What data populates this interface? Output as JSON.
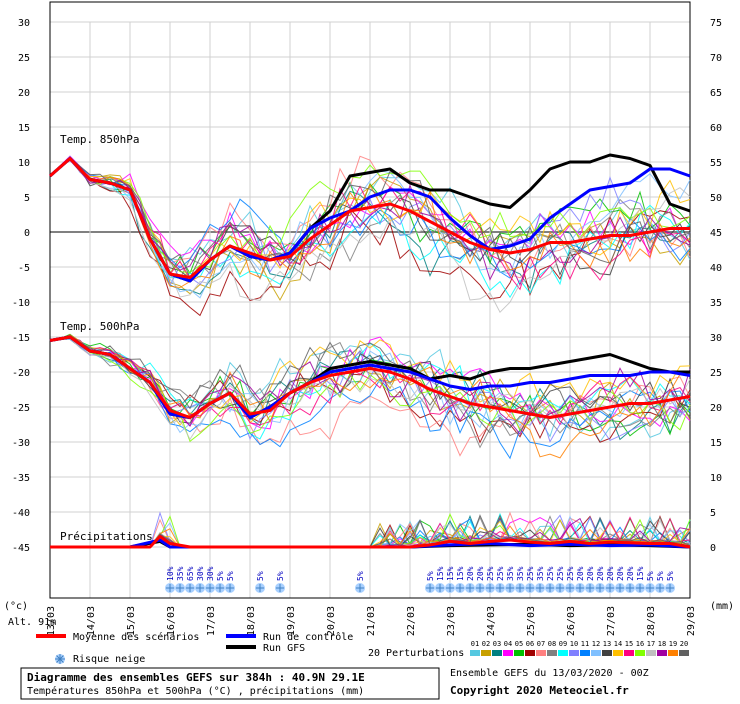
{
  "chart_data": {
    "type": "line",
    "x_dates": [
      "13/03",
      "14/03",
      "15/03",
      "16/03",
      "17/03",
      "18/03",
      "19/03",
      "20/03",
      "21/03",
      "22/03",
      "23/03",
      "24/03",
      "25/03",
      "26/03",
      "27/03",
      "28/03",
      "29/03"
    ],
    "left_ticks": [
      "30",
      "25",
      "20",
      "15",
      "10",
      "5",
      "0",
      "-5",
      "-10",
      "-15",
      "-20",
      "-25",
      "-30",
      "-35",
      "-40",
      "-45"
    ],
    "right_ticks": [
      "75",
      "70",
      "65",
      "60",
      "55",
      "50",
      "45",
      "40",
      "35",
      "30",
      "25",
      "20",
      "15",
      "10",
      "5",
      "0"
    ],
    "left_unit": "(°c)",
    "right_unit": "(mm)",
    "altitude_label": "Alt. 91m",
    "panel_labels": {
      "t850": "Temp. 850hPa",
      "t500": "Temp. 500hPa",
      "precip": "Précipitations"
    },
    "snow_risk": [
      {
        "date_pos": 3.0,
        "pct": "10%"
      },
      {
        "date_pos": 3.25,
        "pct": "35%"
      },
      {
        "date_pos": 3.5,
        "pct": "65%"
      },
      {
        "date_pos": 3.75,
        "pct": "30%"
      },
      {
        "date_pos": 4.0,
        "pct": "30%"
      },
      {
        "date_pos": 4.25,
        "pct": "5%"
      },
      {
        "date_pos": 4.5,
        "pct": "5%"
      },
      {
        "date_pos": 5.25,
        "pct": "5%"
      },
      {
        "date_pos": 5.75,
        "pct": "5%"
      },
      {
        "date_pos": 7.75,
        "pct": "5%"
      },
      {
        "date_pos": 9.5,
        "pct": "5%"
      },
      {
        "date_pos": 9.75,
        "pct": "15%"
      },
      {
        "date_pos": 10.0,
        "pct": "15%"
      },
      {
        "date_pos": 10.25,
        "pct": "15%"
      },
      {
        "date_pos": 10.5,
        "pct": "20%"
      },
      {
        "date_pos": 10.75,
        "pct": "20%"
      },
      {
        "date_pos": 11.0,
        "pct": "25%"
      },
      {
        "date_pos": 11.25,
        "pct": "25%"
      },
      {
        "date_pos": 11.5,
        "pct": "35%"
      },
      {
        "date_pos": 11.75,
        "pct": "35%"
      },
      {
        "date_pos": 12.0,
        "pct": "25%"
      },
      {
        "date_pos": 12.25,
        "pct": "35%"
      },
      {
        "date_pos": 12.5,
        "pct": "25%"
      },
      {
        "date_pos": 12.75,
        "pct": "25%"
      },
      {
        "date_pos": 13.0,
        "pct": "25%"
      },
      {
        "date_pos": 13.25,
        "pct": "20%"
      },
      {
        "date_pos": 13.5,
        "pct": "20%"
      },
      {
        "date_pos": 13.75,
        "pct": "20%"
      },
      {
        "date_pos": 14.0,
        "pct": "20%"
      },
      {
        "date_pos": 14.25,
        "pct": "20%"
      },
      {
        "date_pos": 14.5,
        "pct": "20%"
      },
      {
        "date_pos": 14.75,
        "pct": "15%"
      },
      {
        "date_pos": 15.0,
        "pct": "5%"
      },
      {
        "date_pos": 15.25,
        "pct": "5%"
      },
      {
        "date_pos": 15.5,
        "pct": "5%"
      }
    ],
    "series": [
      {
        "name": "Moyenne des scénarios",
        "color": "#ff0000",
        "t850": [
          [
            0,
            8
          ],
          [
            0.5,
            10.5
          ],
          [
            1,
            7.5
          ],
          [
            1.5,
            7
          ],
          [
            2,
            6
          ],
          [
            2.5,
            -1
          ],
          [
            3,
            -6
          ],
          [
            3.5,
            -6.5
          ],
          [
            4,
            -4
          ],
          [
            4.5,
            -2
          ],
          [
            5,
            -3
          ],
          [
            5.5,
            -4
          ],
          [
            6,
            -3.5
          ],
          [
            6.5,
            -1
          ],
          [
            7,
            1
          ],
          [
            7.5,
            3
          ],
          [
            8,
            3.5
          ],
          [
            8.5,
            4
          ],
          [
            9,
            3
          ],
          [
            9.5,
            1.5
          ],
          [
            10,
            0
          ],
          [
            10.5,
            -1.5
          ],
          [
            11,
            -2.5
          ],
          [
            11.5,
            -3
          ],
          [
            12,
            -2.5
          ],
          [
            12.5,
            -1.5
          ],
          [
            13,
            -1.5
          ],
          [
            13.5,
            -1
          ],
          [
            14,
            -0.5
          ],
          [
            14.5,
            -0.5
          ],
          [
            15,
            0
          ],
          [
            15.5,
            0.5
          ],
          [
            16,
            0.5
          ]
        ],
        "t500": [
          [
            0,
            -15.5
          ],
          [
            0.5,
            -15
          ],
          [
            1,
            -17
          ],
          [
            1.5,
            -17.5
          ],
          [
            2,
            -19.5
          ],
          [
            2.5,
            -21.5
          ],
          [
            3,
            -25.5
          ],
          [
            3.5,
            -26.5
          ],
          [
            4,
            -24.5
          ],
          [
            4.5,
            -23
          ],
          [
            5,
            -26
          ],
          [
            5.5,
            -25.5
          ],
          [
            6,
            -23
          ],
          [
            6.5,
            -21.5
          ],
          [
            7,
            -20.5
          ],
          [
            7.5,
            -20
          ],
          [
            8,
            -19.5
          ],
          [
            8.5,
            -20
          ],
          [
            9,
            -21
          ],
          [
            9.5,
            -22.5
          ],
          [
            10,
            -23.5
          ],
          [
            10.5,
            -24.5
          ],
          [
            11,
            -25
          ],
          [
            11.5,
            -25.5
          ],
          [
            12,
            -26
          ],
          [
            12.5,
            -26.5
          ],
          [
            13,
            -26
          ],
          [
            13.5,
            -25.5
          ],
          [
            14,
            -25
          ],
          [
            14.5,
            -24.5
          ],
          [
            15,
            -24.5
          ],
          [
            15.5,
            -24
          ],
          [
            16,
            -23.5
          ]
        ],
        "precip": [
          [
            0,
            0
          ],
          [
            2,
            0
          ],
          [
            2.5,
            0
          ],
          [
            2.75,
            1.5
          ],
          [
            3,
            0.5
          ],
          [
            3.5,
            0
          ],
          [
            5,
            0
          ],
          [
            7,
            0
          ],
          [
            9,
            0
          ],
          [
            9.5,
            0.3
          ],
          [
            10,
            0.8
          ],
          [
            10.5,
            0.5
          ],
          [
            11,
            0.8
          ],
          [
            11.5,
            1
          ],
          [
            12,
            0.7
          ],
          [
            12.5,
            0.5
          ],
          [
            13,
            0.8
          ],
          [
            13.5,
            0.5
          ],
          [
            14,
            0.7
          ],
          [
            14.5,
            0.6
          ],
          [
            15,
            0.5
          ],
          [
            15.5,
            0.5
          ],
          [
            16,
            0
          ]
        ]
      },
      {
        "name": "Run de contrôle",
        "color": "#0000ff",
        "t850": [
          [
            0,
            8
          ],
          [
            0.5,
            10.5
          ],
          [
            1,
            7.5
          ],
          [
            1.5,
            7
          ],
          [
            2,
            6
          ],
          [
            2.5,
            -1
          ],
          [
            3,
            -6
          ],
          [
            3.5,
            -7
          ],
          [
            4,
            -4
          ],
          [
            4.5,
            -2
          ],
          [
            5,
            -3.5
          ],
          [
            5.5,
            -4
          ],
          [
            6,
            -3
          ],
          [
            6.5,
            0.5
          ],
          [
            7,
            2
          ],
          [
            7.5,
            3
          ],
          [
            8,
            5
          ],
          [
            8.5,
            6
          ],
          [
            9,
            6
          ],
          [
            9.5,
            5
          ],
          [
            10,
            2
          ],
          [
            10.5,
            -0.5
          ],
          [
            11,
            -2.5
          ],
          [
            11.5,
            -2
          ],
          [
            12,
            -1
          ],
          [
            12.5,
            2
          ],
          [
            13,
            4
          ],
          [
            13.5,
            6
          ],
          [
            14,
            6.5
          ],
          [
            14.5,
            7
          ],
          [
            15,
            9
          ],
          [
            15.5,
            9
          ],
          [
            16,
            8
          ]
        ],
        "t500": [
          [
            0,
            -15.5
          ],
          [
            0.5,
            -15
          ],
          [
            1,
            -17
          ],
          [
            1.5,
            -17.5
          ],
          [
            2,
            -19.5
          ],
          [
            2.5,
            -21.5
          ],
          [
            3,
            -26
          ],
          [
            3.5,
            -26.5
          ],
          [
            4,
            -24.5
          ],
          [
            4.5,
            -23
          ],
          [
            5,
            -26.5
          ],
          [
            5.5,
            -25
          ],
          [
            6,
            -23
          ],
          [
            6.5,
            -21.5
          ],
          [
            7,
            -20
          ],
          [
            7.5,
            -19.5
          ],
          [
            8,
            -19
          ],
          [
            8.5,
            -19.5
          ],
          [
            9,
            -20
          ],
          [
            9.5,
            -21
          ],
          [
            10,
            -22
          ],
          [
            10.5,
            -22.5
          ],
          [
            11,
            -22
          ],
          [
            11.5,
            -22
          ],
          [
            12,
            -21.5
          ],
          [
            12.5,
            -21.5
          ],
          [
            13,
            -21
          ],
          [
            13.5,
            -20.5
          ],
          [
            14,
            -20.5
          ],
          [
            14.5,
            -20.5
          ],
          [
            15,
            -20
          ],
          [
            15.5,
            -20
          ],
          [
            16,
            -20.5
          ]
        ],
        "precip": [
          [
            0,
            0
          ],
          [
            2,
            0
          ],
          [
            2.75,
            1
          ],
          [
            3,
            0
          ],
          [
            9,
            0
          ],
          [
            10,
            0.3
          ],
          [
            11,
            0.5
          ],
          [
            12,
            0.2
          ],
          [
            13,
            0.4
          ],
          [
            14,
            0.2
          ],
          [
            15,
            0.3
          ],
          [
            16,
            0
          ]
        ]
      },
      {
        "name": "Run GFS",
        "color": "#000000",
        "t850": [
          [
            0,
            8
          ],
          [
            0.5,
            10.5
          ],
          [
            1,
            7.5
          ],
          [
            1.5,
            7
          ],
          [
            2,
            6
          ],
          [
            2.5,
            -1
          ],
          [
            3,
            -6
          ],
          [
            3.5,
            -7
          ],
          [
            4,
            -4
          ],
          [
            4.5,
            -2
          ],
          [
            5,
            -3.5
          ],
          [
            5.5,
            -4
          ],
          [
            6,
            -3
          ],
          [
            6.5,
            0.5
          ],
          [
            7,
            3
          ],
          [
            7.5,
            8
          ],
          [
            8,
            8.5
          ],
          [
            8.5,
            9
          ],
          [
            9,
            7
          ],
          [
            9.5,
            6
          ],
          [
            10,
            6
          ],
          [
            10.5,
            5
          ],
          [
            11,
            4
          ],
          [
            11.5,
            3.5
          ],
          [
            12,
            6
          ],
          [
            12.5,
            9
          ],
          [
            13,
            10
          ],
          [
            13.5,
            10
          ],
          [
            14,
            11
          ],
          [
            14.5,
            10.5
          ],
          [
            15,
            9.5
          ],
          [
            15.5,
            4
          ],
          [
            16,
            3
          ]
        ],
        "t500": [
          [
            0,
            -15.5
          ],
          [
            0.5,
            -15
          ],
          [
            1,
            -17
          ],
          [
            1.5,
            -17.5
          ],
          [
            2,
            -19.5
          ],
          [
            2.5,
            -21.5
          ],
          [
            3,
            -26
          ],
          [
            3.5,
            -26.5
          ],
          [
            4,
            -24.5
          ],
          [
            4.5,
            -23
          ],
          [
            5,
            -26.5
          ],
          [
            5.5,
            -25
          ],
          [
            6,
            -23
          ],
          [
            6.5,
            -21.5
          ],
          [
            7,
            -19.5
          ],
          [
            7.5,
            -19
          ],
          [
            8,
            -18.5
          ],
          [
            8.5,
            -19
          ],
          [
            9,
            -19.5
          ],
          [
            9.5,
            -21
          ],
          [
            10,
            -20.5
          ],
          [
            10.5,
            -21
          ],
          [
            11,
            -20
          ],
          [
            11.5,
            -19.5
          ],
          [
            12,
            -19.5
          ],
          [
            12.5,
            -19
          ],
          [
            13,
            -18.5
          ],
          [
            13.5,
            -18
          ],
          [
            14,
            -17.5
          ],
          [
            14.5,
            -18.5
          ],
          [
            15,
            -19.5
          ],
          [
            15.5,
            -20
          ],
          [
            16,
            -20
          ]
        ],
        "precip": [
          [
            0,
            0
          ],
          [
            2,
            0
          ],
          [
            2.75,
            0.8
          ],
          [
            3,
            0
          ],
          [
            9,
            0
          ],
          [
            10,
            0.2
          ],
          [
            11,
            0.3
          ],
          [
            12,
            0.4
          ],
          [
            13,
            0.2
          ],
          [
            14,
            0.3
          ],
          [
            15,
            0.2
          ],
          [
            16,
            0
          ]
        ]
      }
    ],
    "perturbation_colors": [
      "#55c8e0",
      "#c8a000",
      "#008080",
      "#ff00ff",
      "#00c000",
      "#a00000",
      "#ff8080",
      "#808080",
      "#00ffff",
      "#8080ff",
      "#0080ff",
      "#80c0ff",
      "#404040",
      "#ffc000",
      "#ff0080",
      "#80ff00",
      "#c0c0c0",
      "#a000a0",
      "#ff8000",
      "#606060"
    ],
    "perturbation_ids": [
      "01",
      "02",
      "03",
      "04",
      "05",
      "06",
      "07",
      "08",
      "09",
      "10",
      "11",
      "12",
      "13",
      "14",
      "15",
      "16",
      "17",
      "18",
      "19",
      "20"
    ]
  },
  "legend": {
    "mean_label": "Moyenne des scénarios",
    "control_label": "Run de contrôle",
    "gfs_label": "Run GFS",
    "snow_label": "Risque neige",
    "perturb_label": "20 Perturbations"
  },
  "footer": {
    "title": "Diagramme des ensembles GEFS sur 384h : 40.9N 29.1E",
    "subtitle": "Températures 850hPa et 500hPa (°C) , précipitations (mm)",
    "run": "Ensemble GEFS du 13/03/2020 - 00Z",
    "copyright": "Copyright 2020 Meteociel.fr"
  },
  "colors": {
    "mean": "#ff0000",
    "control": "#0000ff",
    "gfs": "#000000",
    "grid": "#d0d0d0",
    "zero_line": "#808080"
  }
}
